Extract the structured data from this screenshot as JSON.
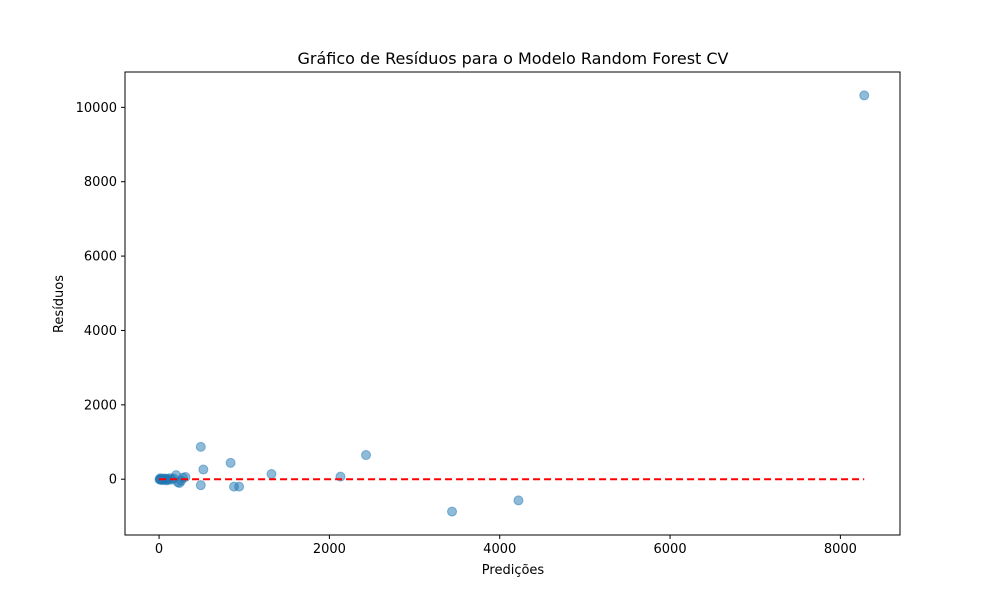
{
  "chart_data": {
    "type": "scatter",
    "title": "Gráfico de Resíduos para o Modelo Random Forest CV",
    "xlabel": "Predições",
    "ylabel": "Resíduos",
    "xlim": [
      -400,
      8700
    ],
    "ylim": [
      -1500,
      10950
    ],
    "xticks": [
      0,
      2000,
      4000,
      6000,
      8000
    ],
    "xtick_labels": [
      "0",
      "2000",
      "4000",
      "6000",
      "8000"
    ],
    "yticks": [
      0,
      2000,
      4000,
      6000,
      8000,
      10000
    ],
    "ytick_labels": [
      "0",
      "2000",
      "4000",
      "6000",
      "8000",
      "10000"
    ],
    "grid": false,
    "point_color": "#1f77b4",
    "point_alpha": 0.5,
    "reference_line": {
      "y": 0,
      "x_range": [
        0,
        8280
      ],
      "color": "#ff0000",
      "style": "dashed"
    },
    "points": [
      {
        "x": 8280,
        "y": 10320
      },
      {
        "x": 2430,
        "y": 650
      },
      {
        "x": 2130,
        "y": 70
      },
      {
        "x": 4220,
        "y": -570
      },
      {
        "x": 3440,
        "y": -870
      },
      {
        "x": 1320,
        "y": 140
      },
      {
        "x": 840,
        "y": 440
      },
      {
        "x": 490,
        "y": 870
      },
      {
        "x": 520,
        "y": 260
      },
      {
        "x": 490,
        "y": -160
      },
      {
        "x": 880,
        "y": -200
      },
      {
        "x": 940,
        "y": -200
      },
      {
        "x": 310,
        "y": 60
      },
      {
        "x": 280,
        "y": 40
      },
      {
        "x": 260,
        "y": -40
      },
      {
        "x": 240,
        "y": -100
      },
      {
        "x": 220,
        "y": -80
      },
      {
        "x": 200,
        "y": 110
      },
      {
        "x": 170,
        "y": 20
      },
      {
        "x": 150,
        "y": -10
      },
      {
        "x": 130,
        "y": 30
      },
      {
        "x": 110,
        "y": -20
      },
      {
        "x": 95,
        "y": 10
      },
      {
        "x": 85,
        "y": -30
      },
      {
        "x": 75,
        "y": 20
      },
      {
        "x": 60,
        "y": -10
      },
      {
        "x": 50,
        "y": 15
      },
      {
        "x": 40,
        "y": -25
      },
      {
        "x": 30,
        "y": 5
      },
      {
        "x": 20,
        "y": -15
      },
      {
        "x": 15,
        "y": 25
      },
      {
        "x": 10,
        "y": 0
      },
      {
        "x": 5,
        "y": -5
      }
    ]
  }
}
